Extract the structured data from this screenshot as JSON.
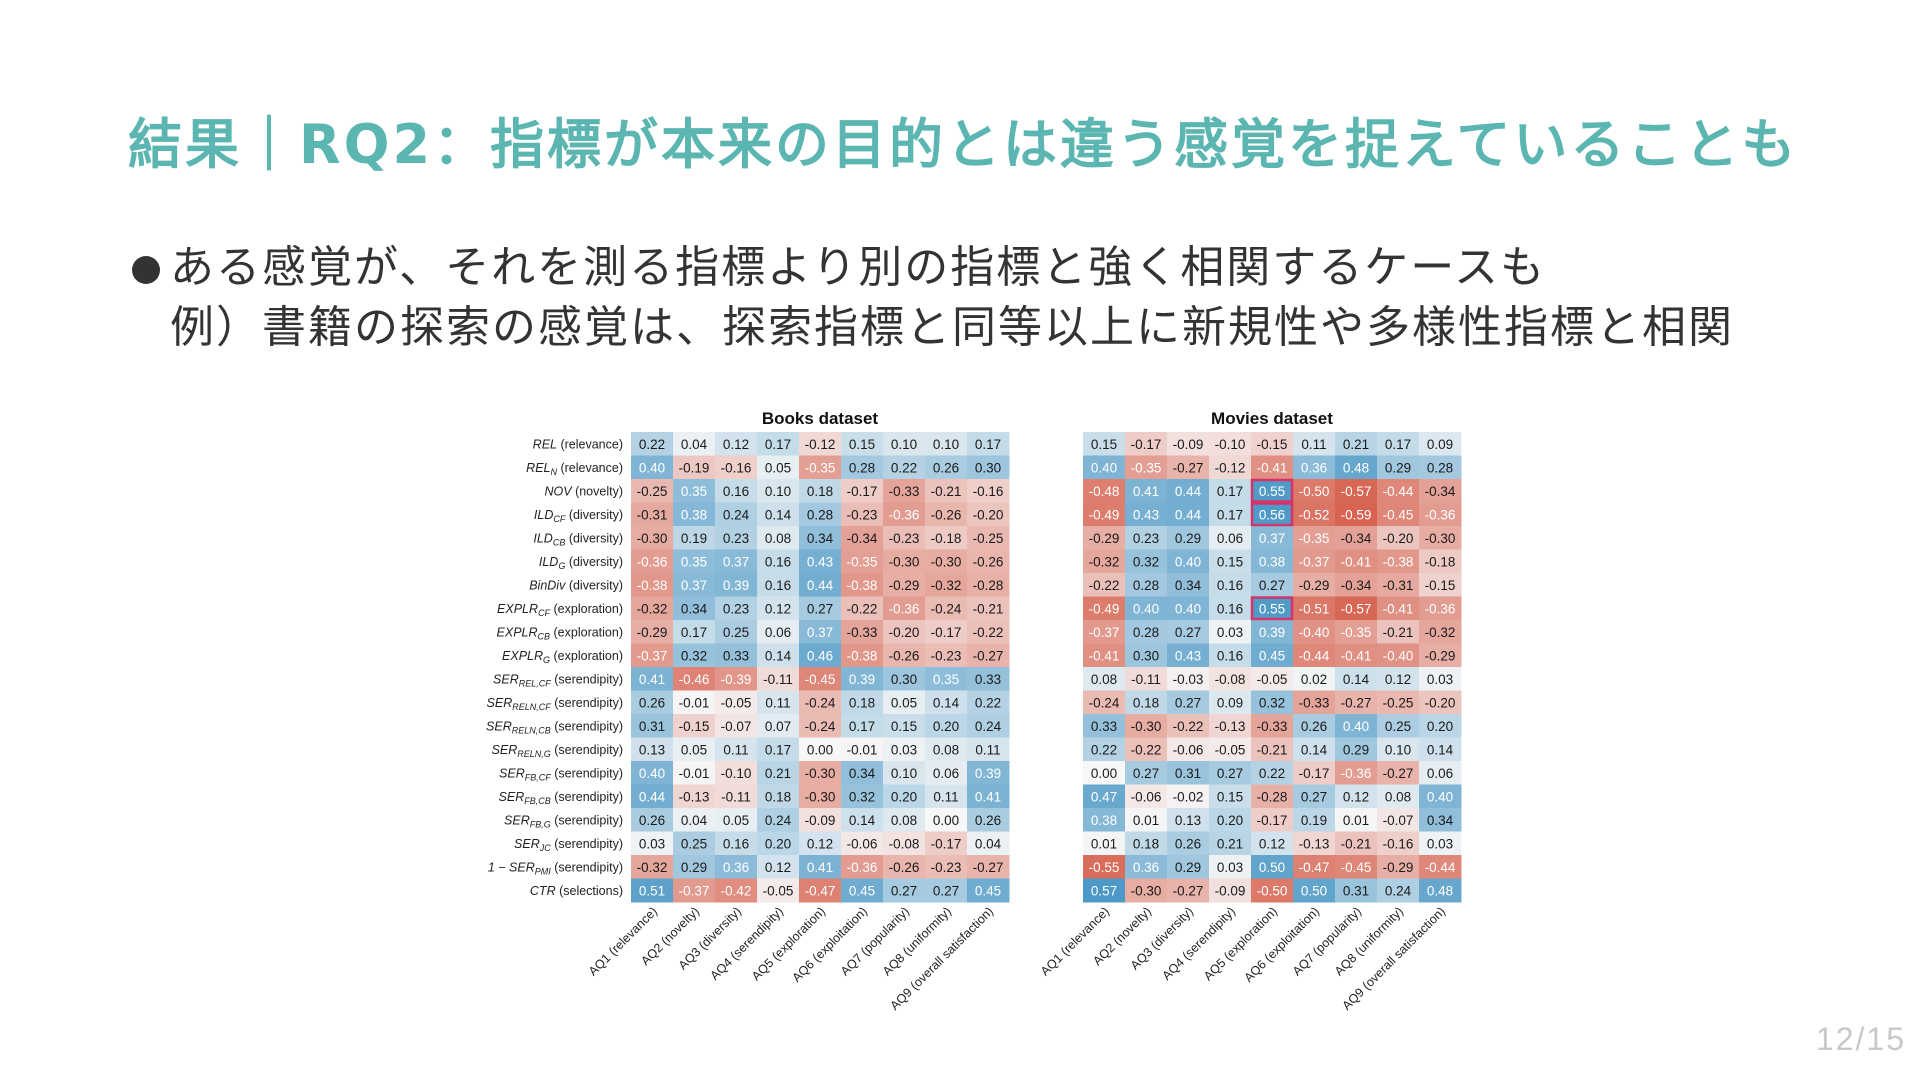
{
  "slide": {
    "title": "結果｜RQ2：指標が本来の目的とは違う感覚を捉えていることも",
    "bullet": "ある感覚が、それを測る指標より別の指標と強く相関するケースも",
    "example": "例）書籍の探索の感覚は、探索指標と同等以上に新規性や多様性指標と相関",
    "page_number": "12/15"
  },
  "chart_data": [
    {
      "type": "heatmap",
      "title": "Books dataset",
      "rows": [
        "REL (relevance)",
        "REL_N (relevance)",
        "NOV (novelty)",
        "ILD_CF (diversity)",
        "ILD_CB (diversity)",
        "ILD_G (diversity)",
        "BinDiv (diversity)",
        "EXPLR_CF (exploration)",
        "EXPLR_CB (exploration)",
        "EXPLR_G (exploration)",
        "SER_REL,CF (serendipity)",
        "SER_RELN,CF (serendipity)",
        "SER_RELN,CB (serendipity)",
        "SER_RELN,G (serendipity)",
        "SER_FB,CF (serendipity)",
        "SER_FB,CB (serendipity)",
        "SER_FB,G (serendipity)",
        "SER_JC (serendipity)",
        "1 − SER_PMI (serendipity)",
        "CTR (selections)"
      ],
      "columns": [
        "AQ1 (relevance)",
        "AQ2 (novelty)",
        "AQ3 (diversity)",
        "AQ4 (serendipity)",
        "AQ5 (exploration)",
        "AQ6 (exploitation)",
        "AQ7 (popularity)",
        "AQ8 (uniformity)",
        "AQ9 (overall satisfaction)"
      ],
      "values": [
        [
          0.22,
          0.04,
          0.12,
          0.17,
          -0.12,
          0.15,
          0.1,
          0.1,
          0.17
        ],
        [
          0.4,
          -0.19,
          -0.16,
          0.05,
          -0.35,
          0.28,
          0.22,
          0.26,
          0.3
        ],
        [
          -0.25,
          0.35,
          0.16,
          0.1,
          0.18,
          -0.17,
          -0.33,
          -0.21,
          -0.16
        ],
        [
          -0.31,
          0.38,
          0.24,
          0.14,
          0.28,
          -0.23,
          -0.36,
          -0.26,
          -0.2
        ],
        [
          -0.3,
          0.19,
          0.23,
          0.08,
          0.34,
          -0.34,
          -0.23,
          -0.18,
          -0.25
        ],
        [
          -0.36,
          0.35,
          0.37,
          0.16,
          0.43,
          -0.35,
          -0.3,
          -0.3,
          -0.26
        ],
        [
          -0.38,
          0.37,
          0.39,
          0.16,
          0.44,
          -0.38,
          -0.29,
          -0.32,
          -0.28
        ],
        [
          -0.32,
          0.34,
          0.23,
          0.12,
          0.27,
          -0.22,
          -0.36,
          -0.24,
          -0.21
        ],
        [
          -0.29,
          0.17,
          0.25,
          0.06,
          0.37,
          -0.33,
          -0.2,
          -0.17,
          -0.22
        ],
        [
          -0.37,
          0.32,
          0.33,
          0.14,
          0.46,
          -0.38,
          -0.26,
          -0.23,
          -0.27
        ],
        [
          0.41,
          -0.46,
          -0.39,
          -0.11,
          -0.45,
          0.39,
          0.3,
          0.35,
          0.33
        ],
        [
          0.26,
          -0.01,
          -0.05,
          0.11,
          -0.24,
          0.18,
          0.05,
          0.14,
          0.22
        ],
        [
          0.31,
          -0.15,
          -0.07,
          0.07,
          -0.24,
          0.17,
          0.15,
          0.2,
          0.24
        ],
        [
          0.13,
          0.05,
          0.11,
          0.17,
          -0.0,
          -0.01,
          0.03,
          0.08,
          0.11
        ],
        [
          0.4,
          -0.01,
          -0.1,
          0.21,
          -0.3,
          0.34,
          0.1,
          0.06,
          0.39
        ],
        [
          0.44,
          -0.13,
          -0.11,
          0.18,
          -0.3,
          0.32,
          0.2,
          0.11,
          0.41
        ],
        [
          0.26,
          0.04,
          0.05,
          0.24,
          -0.09,
          0.14,
          0.08,
          0.0,
          0.26
        ],
        [
          0.03,
          0.25,
          0.16,
          0.2,
          0.12,
          -0.06,
          -0.08,
          -0.17,
          0.04
        ],
        [
          -0.32,
          0.29,
          0.36,
          0.12,
          0.41,
          -0.36,
          -0.26,
          -0.23,
          -0.27
        ],
        [
          0.51,
          -0.37,
          -0.42,
          -0.05,
          -0.47,
          0.45,
          0.27,
          0.27,
          0.45
        ]
      ],
      "highlighted_cells": [],
      "color_scale": {
        "negative": "#d6604d",
        "zero": "#f7f7f7",
        "positive": "#4393c3",
        "vmin": -0.6,
        "vmax": 0.6
      }
    },
    {
      "type": "heatmap",
      "title": "Movies dataset",
      "rows": [
        "REL (relevance)",
        "REL_N (relevance)",
        "NOV (novelty)",
        "ILD_CF (diversity)",
        "ILD_CB (diversity)",
        "ILD_G (diversity)",
        "BinDiv (diversity)",
        "EXPLR_CF (exploration)",
        "EXPLR_CB (exploration)",
        "EXPLR_G (exploration)",
        "SER_REL,CF (serendipity)",
        "SER_RELN,CF (serendipity)",
        "SER_RELN,CB (serendipity)",
        "SER_RELN,G (serendipity)",
        "SER_FB,CF (serendipity)",
        "SER_FB,CB (serendipity)",
        "SER_FB,G (serendipity)",
        "SER_JC (serendipity)",
        "1 − SER_PMI (serendipity)",
        "CTR (selections)"
      ],
      "columns": [
        "AQ1 (relevance)",
        "AQ2 (novelty)",
        "AQ3 (diversity)",
        "AQ4 (serendipity)",
        "AQ5 (exploration)",
        "AQ6 (exploitation)",
        "AQ7 (popularity)",
        "AQ8 (uniformity)",
        "AQ9 (overall satisfaction)"
      ],
      "values": [
        [
          0.15,
          -0.17,
          -0.09,
          -0.1,
          -0.15,
          0.11,
          0.21,
          0.17,
          0.09
        ],
        [
          0.4,
          -0.35,
          -0.27,
          -0.12,
          -0.41,
          0.36,
          0.48,
          0.29,
          0.28
        ],
        [
          -0.48,
          0.41,
          0.44,
          0.17,
          0.55,
          -0.5,
          -0.57,
          -0.44,
          -0.34
        ],
        [
          -0.49,
          0.43,
          0.44,
          0.17,
          0.56,
          -0.52,
          -0.59,
          -0.45,
          -0.36
        ],
        [
          -0.29,
          0.23,
          0.29,
          0.06,
          0.37,
          -0.35,
          -0.34,
          -0.2,
          -0.3
        ],
        [
          -0.32,
          0.32,
          0.4,
          0.15,
          0.38,
          -0.37,
          -0.41,
          -0.38,
          -0.18
        ],
        [
          -0.22,
          0.28,
          0.34,
          0.16,
          0.27,
          -0.29,
          -0.34,
          -0.31,
          -0.15
        ],
        [
          -0.49,
          0.4,
          0.4,
          0.16,
          0.55,
          -0.51,
          -0.57,
          -0.41,
          -0.36
        ],
        [
          -0.37,
          0.28,
          0.27,
          0.03,
          0.39,
          -0.4,
          -0.35,
          -0.21,
          -0.32
        ],
        [
          -0.41,
          0.3,
          0.43,
          0.16,
          0.45,
          -0.44,
          -0.41,
          -0.4,
          -0.29
        ],
        [
          0.08,
          -0.11,
          -0.03,
          -0.08,
          -0.05,
          0.02,
          0.14,
          0.12,
          0.03
        ],
        [
          -0.24,
          0.18,
          0.27,
          0.09,
          0.32,
          -0.33,
          -0.27,
          -0.25,
          -0.2
        ],
        [
          0.33,
          -0.3,
          -0.22,
          -0.13,
          -0.33,
          0.26,
          0.4,
          0.25,
          0.2
        ],
        [
          0.22,
          -0.22,
          -0.06,
          -0.05,
          -0.21,
          0.14,
          0.29,
          0.1,
          0.14
        ],
        [
          0.0,
          0.27,
          0.31,
          0.27,
          0.22,
          -0.17,
          -0.36,
          -0.27,
          0.06
        ],
        [
          0.47,
          -0.06,
          -0.02,
          0.15,
          -0.28,
          0.27,
          0.12,
          0.08,
          0.4
        ],
        [
          0.38,
          0.01,
          0.13,
          0.2,
          -0.17,
          0.19,
          0.01,
          -0.07,
          0.34
        ],
        [
          0.01,
          0.18,
          0.26,
          0.21,
          0.12,
          -0.13,
          -0.21,
          -0.16,
          0.03
        ],
        [
          -0.55,
          0.36,
          0.29,
          0.03,
          0.5,
          -0.47,
          -0.45,
          -0.29,
          -0.44
        ],
        [
          0.57,
          -0.3,
          -0.27,
          -0.09,
          -0.5,
          0.5,
          0.31,
          0.24,
          0.48
        ]
      ],
      "highlighted_cells": [
        [
          2,
          4
        ],
        [
          3,
          4
        ],
        [
          7,
          4
        ]
      ],
      "highlight_color": "#d6336c",
      "color_scale": {
        "negative": "#d6604d",
        "zero": "#f7f7f7",
        "positive": "#4393c3",
        "vmin": -0.6,
        "vmax": 0.6
      }
    }
  ]
}
